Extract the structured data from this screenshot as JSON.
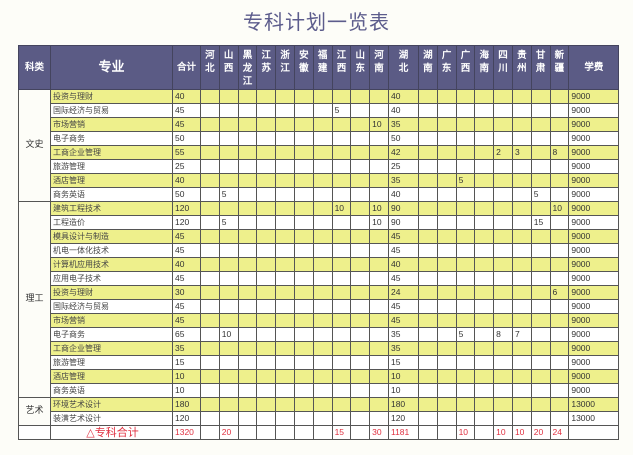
{
  "title": "专科计划一览表",
  "header": {
    "category": "科类",
    "major": "专业",
    "total": "合计",
    "provinces": [
      "河北",
      "山西",
      "黑龙江",
      "江苏",
      "浙江",
      "安徽",
      "福建",
      "江西",
      "山东",
      "河南",
      "湖北",
      "湖南",
      "广东",
      "广西",
      "海南",
      "四川",
      "贵州",
      "甘肃",
      "新疆"
    ],
    "tuition": "学费"
  },
  "colors": {
    "header_bg": "#5b5b85",
    "row_highlight": "#eef08c",
    "total_text": "#e03040"
  },
  "groups": [
    {
      "category": "文史",
      "rows": [
        {
          "major": "投资与理财",
          "total": 40,
          "values": {
            "湖北": 40
          },
          "tuition": 9000
        },
        {
          "major": "国际经济与贸易",
          "total": 45,
          "values": {
            "江西": 5,
            "湖北": 40
          },
          "tuition": 9000
        },
        {
          "major": "市场营销",
          "total": 45,
          "values": {
            "河南": 10,
            "湖北": 35
          },
          "tuition": 9000
        },
        {
          "major": "电子商务",
          "total": 50,
          "values": {
            "湖北": 50
          },
          "tuition": 9000
        },
        {
          "major": "工商企业管理",
          "total": 55,
          "values": {
            "湖北": 42,
            "四川": 2,
            "贵州": 3,
            "新疆": 8
          },
          "tuition": 9000
        },
        {
          "major": "旅游管理",
          "total": 25,
          "values": {
            "湖北": 25
          },
          "tuition": 9000
        },
        {
          "major": "酒店管理",
          "total": 40,
          "values": {
            "湖北": 35,
            "广西": 5
          },
          "tuition": 9000
        },
        {
          "major": "商务英语",
          "total": 50,
          "values": {
            "山西": 5,
            "湖北": 40,
            "甘肃": 5
          },
          "tuition": 9000
        }
      ]
    },
    {
      "category": "理工",
      "rows": [
        {
          "major": "建筑工程技术",
          "total": 120,
          "values": {
            "江西": 10,
            "河南": 10,
            "湖北": 90,
            "新疆": 10
          },
          "tuition": 9000
        },
        {
          "major": "工程造价",
          "total": 120,
          "values": {
            "山西": 5,
            "河南": 10,
            "湖北": 90,
            "甘肃": 15
          },
          "tuition": 9000
        },
        {
          "major": "模具设计与制造",
          "total": 45,
          "values": {
            "湖北": 45
          },
          "tuition": 9000
        },
        {
          "major": "机电一体化技术",
          "total": 45,
          "values": {
            "湖北": 45
          },
          "tuition": 9000
        },
        {
          "major": "计算机应用技术",
          "total": 40,
          "values": {
            "湖北": 40
          },
          "tuition": 9000
        },
        {
          "major": "应用电子技术",
          "total": 45,
          "values": {
            "湖北": 45
          },
          "tuition": 9000
        },
        {
          "major": "投资与理财",
          "total": 30,
          "values": {
            "湖北": 24,
            "新疆": 6
          },
          "tuition": 9000
        },
        {
          "major": "国际经济与贸易",
          "total": 45,
          "values": {
            "湖北": 45
          },
          "tuition": 9000
        },
        {
          "major": "市场营销",
          "total": 45,
          "values": {
            "湖北": 45
          },
          "tuition": 9000
        },
        {
          "major": "电子商务",
          "total": 65,
          "values": {
            "山西": 10,
            "湖北": 35,
            "广西": 5,
            "四川": 8,
            "贵州": 7
          },
          "tuition": 9000
        },
        {
          "major": "工商企业管理",
          "total": 35,
          "values": {
            "湖北": 35
          },
          "tuition": 9000
        },
        {
          "major": "旅游管理",
          "total": 15,
          "values": {
            "湖北": 15
          },
          "tuition": 9000
        },
        {
          "major": "酒店管理",
          "total": 10,
          "values": {
            "湖北": 10
          },
          "tuition": 9000
        },
        {
          "major": "商务英语",
          "total": 10,
          "values": {
            "湖北": 10
          },
          "tuition": 9000
        }
      ]
    },
    {
      "category": "艺术",
      "rows": [
        {
          "major": "环境艺术设计",
          "total": 180,
          "values": {
            "湖北": 180
          },
          "tuition": 13000
        },
        {
          "major": "装潢艺术设计",
          "total": 120,
          "values": {
            "湖北": 120
          },
          "tuition": 13000
        }
      ]
    }
  ],
  "summary": {
    "label": "△专科合计",
    "total": 1320,
    "values": {
      "山西": 20,
      "江西": 15,
      "河南": 30,
      "湖北": 1181,
      "广西": 10,
      "四川": 10,
      "贵州": 10,
      "甘肃": 20,
      "新疆": 24
    }
  }
}
